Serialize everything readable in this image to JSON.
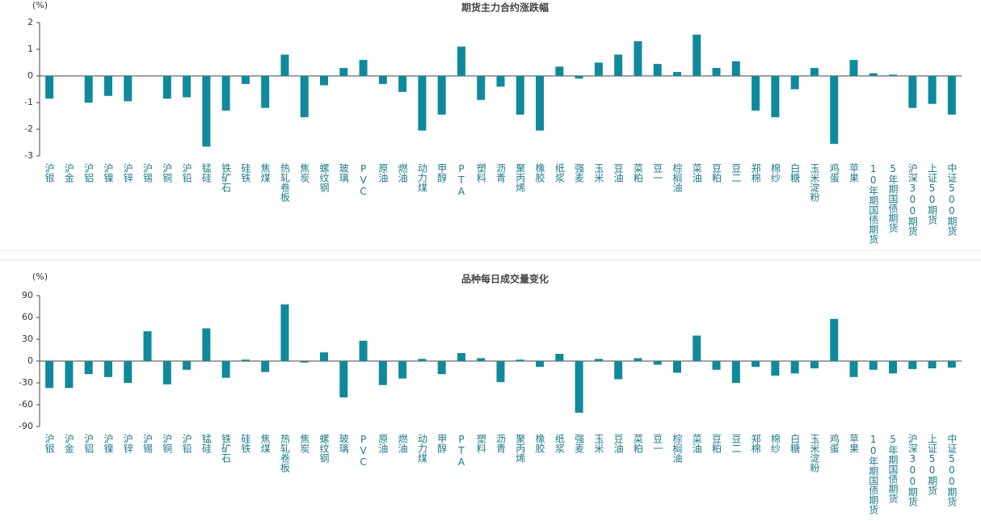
{
  "chart_data": [
    {
      "type": "bar",
      "title": "期货主力合约涨跌幅",
      "y_label": "(%)",
      "color": "#0e8a9c",
      "categories": [
        "沪银",
        "沪金",
        "沪铝",
        "沪镍",
        "沪锌",
        "沪锡",
        "沪铜",
        "沪铅",
        "锰硅",
        "铁矿石",
        "硅铁",
        "焦煤",
        "热轧卷板",
        "焦炭",
        "螺纹钢",
        "玻璃",
        "PVC",
        "原油",
        "燃油",
        "动力煤",
        "甲醇",
        "PTA",
        "塑料",
        "沥青",
        "聚丙烯",
        "橡胶",
        "纸浆",
        "强麦",
        "玉米",
        "豆油",
        "菜粕",
        "豆一",
        "棕榈油",
        "菜油",
        "豆粕",
        "豆二",
        "郑棉",
        "棉纱",
        "白糖",
        "玉米淀粉",
        "鸡蛋",
        "苹果",
        "10年期国债期货",
        "5年期国债期货",
        "沪深300期货",
        "上证50期货",
        "中证500期货"
      ],
      "values": [
        -0.85,
        0,
        -1.0,
        -0.75,
        -0.95,
        0,
        -0.85,
        -0.8,
        -2.65,
        -1.3,
        -0.3,
        -1.2,
        0.8,
        -1.55,
        -0.35,
        0.3,
        0.6,
        -0.3,
        -0.6,
        -2.05,
        -1.45,
        1.1,
        -0.9,
        -0.4,
        -1.45,
        -2.05,
        0.35,
        -0.1,
        0.5,
        0.8,
        1.3,
        0.45,
        0.15,
        1.55,
        0.3,
        0.55,
        -1.3,
        -1.55,
        -0.5,
        0.3,
        -2.55,
        0.6,
        0.1,
        0.05,
        -1.2,
        -1.05,
        -1.45
      ],
      "ylim": [
        -3,
        2
      ],
      "yticks": [
        -3,
        -2,
        -1,
        0,
        1,
        2
      ]
    },
    {
      "type": "bar",
      "title": "品种每日成交量变化",
      "y_label": "(%)",
      "color": "#0e8a9c",
      "categories": [
        "沪银",
        "沪金",
        "沪铝",
        "沪镍",
        "沪锌",
        "沪锡",
        "沪铜",
        "沪铅",
        "锰硅",
        "铁矿石",
        "硅铁",
        "焦煤",
        "热轧卷板",
        "焦炭",
        "螺纹钢",
        "玻璃",
        "PVC",
        "原油",
        "燃油",
        "动力煤",
        "甲醇",
        "PTA",
        "塑料",
        "沥青",
        "聚丙烯",
        "橡胶",
        "纸浆",
        "强麦",
        "玉米",
        "豆油",
        "菜粕",
        "豆一",
        "棕榈油",
        "菜油",
        "豆粕",
        "豆二",
        "郑棉",
        "棉纱",
        "白糖",
        "玉米淀粉",
        "鸡蛋",
        "苹果",
        "10年期国债期货",
        "5年期国债期货",
        "沪深300期货",
        "上证50期货",
        "中证500期货"
      ],
      "values": [
        -37,
        -37,
        -18,
        -22,
        -30,
        41,
        -32,
        -12,
        45,
        -23,
        2,
        -15,
        78,
        -2,
        12,
        -50,
        28,
        -33,
        -24,
        3,
        -18,
        11,
        4,
        -29,
        2,
        -8,
        10,
        -71,
        3,
        -25,
        4,
        -5,
        -16,
        35,
        -12,
        -30,
        -8,
        -20,
        -17,
        -10,
        58,
        -22,
        -12,
        -17,
        -11,
        -10,
        -9
      ],
      "ylim": [
        -90,
        90
      ],
      "yticks": [
        -90,
        -60,
        -30,
        0,
        30,
        60,
        90
      ]
    }
  ]
}
